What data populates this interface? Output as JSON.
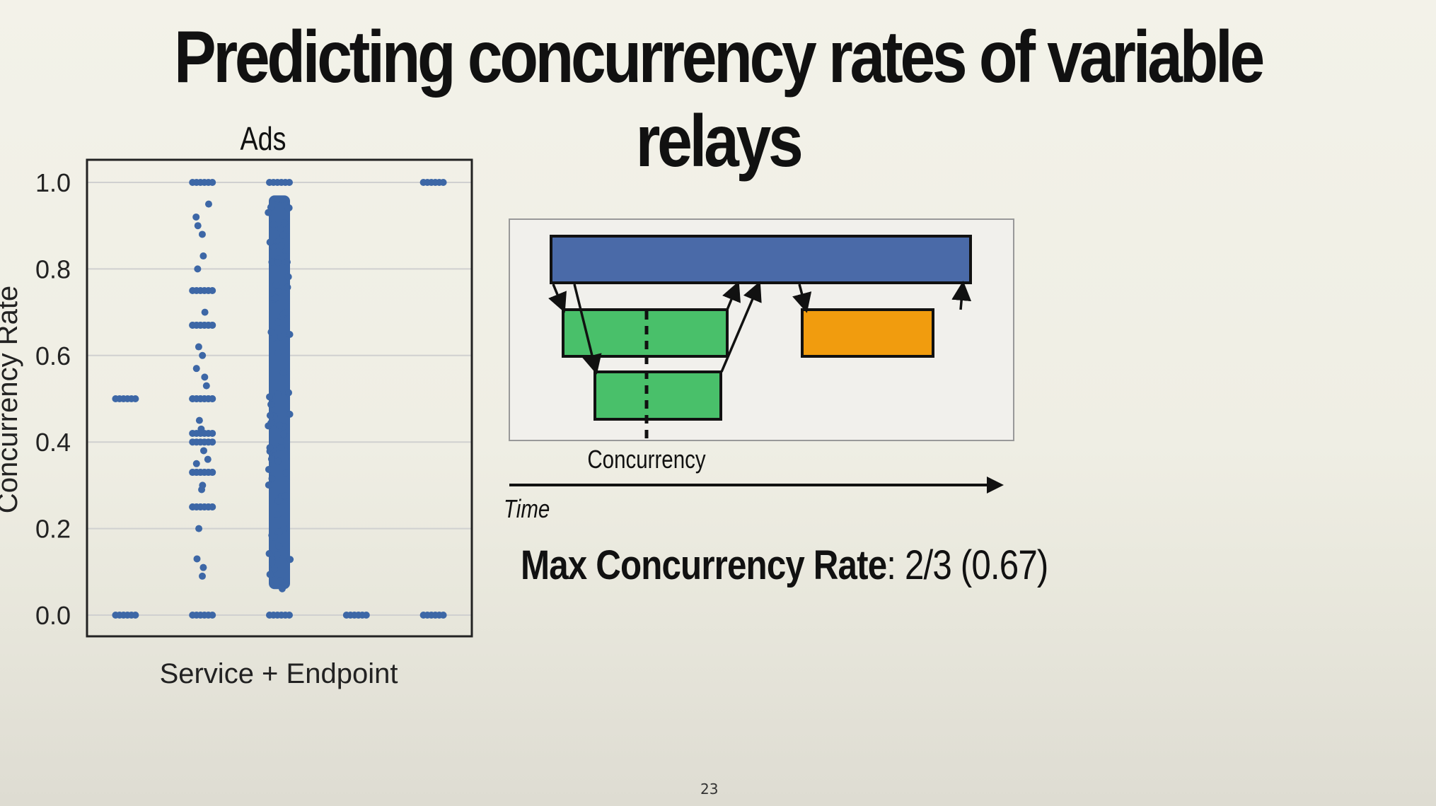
{
  "slide": {
    "title": "Predicting concurrency rates of variable relays",
    "page_number": "23",
    "max_rate_label": "Max Concurrency Rate",
    "max_rate_value": ": 2/3 (0.67)"
  },
  "chart_data": {
    "type": "scatter",
    "title": "Ads",
    "xlabel": "Service + Endpoint",
    "ylabel": "Concurrency Rate",
    "ylim": [
      0.0,
      1.0
    ],
    "yticks": [
      "0.0",
      "0.2",
      "0.4",
      "0.6",
      "0.8",
      "1.0"
    ],
    "grid": "horizontal",
    "color": "#3d67a6",
    "categories": [
      "",
      "",
      "",
      "",
      ""
    ],
    "series": [
      {
        "x": 0,
        "values": [
          0.0,
          0.5
        ]
      },
      {
        "x": 1,
        "values": [
          0.0,
          0.09,
          0.11,
          0.13,
          0.2,
          0.25,
          0.25,
          0.29,
          0.3,
          0.33,
          0.33,
          0.35,
          0.36,
          0.38,
          0.4,
          0.42,
          0.43,
          0.45,
          0.5,
          0.5,
          0.53,
          0.55,
          0.57,
          0.6,
          0.62,
          0.67,
          0.67,
          0.7,
          0.75,
          0.8,
          0.83,
          0.88,
          0.9,
          0.92,
          0.95,
          1.0
        ]
      },
      {
        "x": 2,
        "values_range": [
          0.06,
          0.97
        ],
        "extra_values": [
          0.0,
          1.0
        ]
      },
      {
        "x": 3,
        "values": [
          0.0
        ]
      },
      {
        "x": 4,
        "values": [
          0.0,
          1.0
        ]
      }
    ]
  },
  "diagram": {
    "concurrency_label": "Concurrency",
    "time_label": "Time",
    "colors": {
      "parent": "#4a6aa8",
      "child": "#49c06a",
      "other": "#f19c0e",
      "panel": "#f1f0ec"
    }
  }
}
